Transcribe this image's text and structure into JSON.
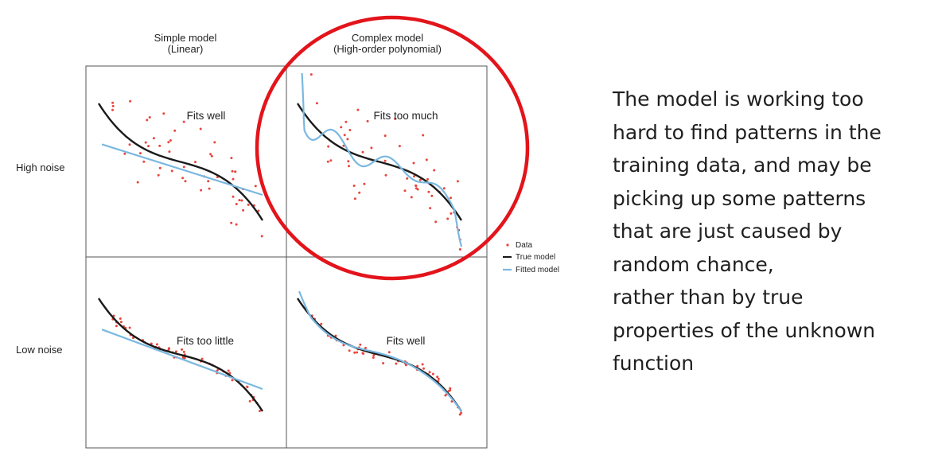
{
  "columns": [
    {
      "title_line1": "Simple model",
      "title_line2": "(Linear)"
    },
    {
      "title_line1": "Complex model",
      "title_line2": "(High-order polynomial)"
    }
  ],
  "rows": [
    {
      "label": "High noise"
    },
    {
      "label": "Low noise"
    }
  ],
  "panels": [
    {
      "caption": "Fits well"
    },
    {
      "caption": "Fits too much"
    },
    {
      "caption": "Fits too little"
    },
    {
      "caption": "Fits well"
    }
  ],
  "legend": {
    "data": "Data",
    "true_model": "True model",
    "fitted_model": "Fitted model"
  },
  "colors": {
    "data_points": "#e8463c",
    "true_model": "#1a1a1a",
    "fitted_model": "#7ab8e0",
    "highlight_circle": "#e3141b",
    "grid": "#555555"
  },
  "explanation_lines": [
    "The model is working too",
    "hard to find patterns in the",
    "training data, and may be",
    "picking up some patterns",
    "that are just caused by",
    "random chance,",
    "rather than by true",
    "properties of the  unknown",
    "function"
  ]
}
